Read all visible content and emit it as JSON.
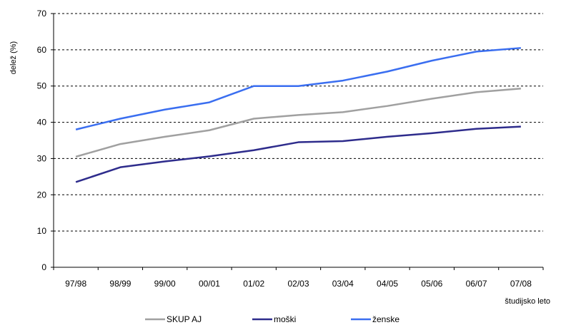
{
  "chart_data": {
    "type": "line",
    "categories": [
      "97/98",
      "98/99",
      "99/00",
      "00/01",
      "01/02",
      "02/03",
      "03/04",
      "04/05",
      "05/06",
      "06/07",
      "07/08"
    ],
    "ylabel": "delež (%)",
    "xlabel": "študijsko leto",
    "ylim": [
      0,
      70
    ],
    "yticks": [
      0,
      10,
      20,
      30,
      40,
      50,
      60,
      70
    ],
    "grid": "horizontal dashed",
    "legend_position": "bottom",
    "series": [
      {
        "name": "SKUP AJ",
        "color": "#a0a0a0",
        "values": [
          30.5,
          34,
          36,
          37.8,
          41,
          42,
          42.8,
          44.5,
          46.5,
          48.3,
          49.3
        ]
      },
      {
        "name": "moški",
        "color": "#2e2c8c",
        "values": [
          23.5,
          27.6,
          29.2,
          30.6,
          32.3,
          34.5,
          34.8,
          36,
          37,
          38.2,
          38.8
        ]
      },
      {
        "name": "ženske",
        "color": "#3a6ef0",
        "values": [
          38,
          41,
          43.5,
          45.5,
          50,
          50,
          51.5,
          54,
          57,
          59.5,
          60.5
        ]
      }
    ]
  }
}
